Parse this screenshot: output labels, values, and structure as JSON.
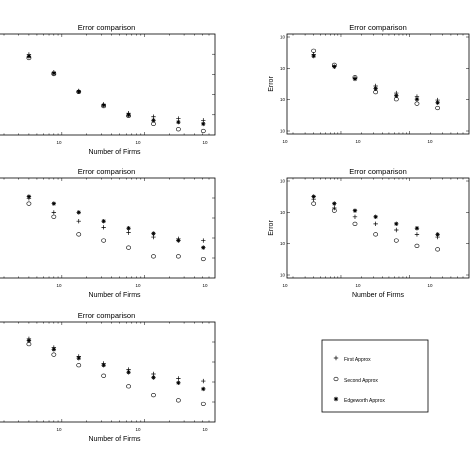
{
  "chart_data": [
    {
      "type": "scatter",
      "title": "Error comparison",
      "xlabel": "Number of Firms",
      "ylabel": "",
      "x_tick_labels": [
        "10",
        "10",
        "10"
      ],
      "y_tick_labels": [],
      "x": [
        4,
        8,
        16,
        32,
        64,
        128,
        256,
        512
      ],
      "series": [
        {
          "marker": "plus",
          "values": [
            0.86,
            0.66,
            0.45,
            0.3,
            0.2,
            0.16,
            0.14,
            0.12
          ]
        },
        {
          "marker": "circle",
          "values": [
            0.82,
            0.64,
            0.44,
            0.28,
            0.17,
            0.08,
            0.02,
            0.0
          ]
        },
        {
          "marker": "star",
          "values": [
            0.84,
            0.65,
            0.44,
            0.29,
            0.18,
            0.12,
            0.1,
            0.08
          ]
        }
      ]
    },
    {
      "type": "scatter",
      "title": "Error comparison",
      "xlabel": "",
      "ylabel": "Error",
      "x_tick_labels": [
        "10",
        "10",
        "10"
      ],
      "y_tick_labels": [
        "10",
        "10",
        "10",
        "10"
      ],
      "x": [
        4,
        8,
        16,
        32,
        64,
        128,
        256
      ],
      "series": [
        {
          "marker": "plus",
          "values": [
            0.86,
            0.72,
            0.59,
            0.5,
            0.42,
            0.38,
            0.34
          ]
        },
        {
          "marker": "circle",
          "values": [
            0.9,
            0.74,
            0.6,
            0.43,
            0.35,
            0.3,
            0.25
          ]
        },
        {
          "marker": "star",
          "values": [
            0.84,
            0.72,
            0.58,
            0.47,
            0.39,
            0.35,
            0.31
          ]
        }
      ]
    },
    {
      "type": "scatter",
      "title": "Error comparison",
      "xlabel": "Number of Firms",
      "ylabel": "",
      "x_tick_labels": [
        "10",
        "10",
        "10"
      ],
      "y_tick_labels": [],
      "x": [
        4,
        8,
        16,
        32,
        64,
        128,
        256,
        512
      ],
      "series": [
        {
          "marker": "plus",
          "values": [
            0.86,
            0.7,
            0.6,
            0.53,
            0.47,
            0.42,
            0.4,
            0.38
          ]
        },
        {
          "marker": "circle",
          "values": [
            0.8,
            0.65,
            0.45,
            0.38,
            0.3,
            0.2,
            0.2,
            0.17
          ]
        },
        {
          "marker": "star",
          "values": [
            0.88,
            0.8,
            0.7,
            0.6,
            0.52,
            0.46,
            0.38,
            0.3
          ]
        }
      ]
    },
    {
      "type": "scatter",
      "title": "Error comparison",
      "xlabel": "Number of Firms",
      "ylabel": "Error",
      "x_tick_labels": [
        "10",
        "10",
        "10"
      ],
      "y_tick_labels": [
        "10",
        "10",
        "10",
        "10"
      ],
      "x": [
        4,
        8,
        16,
        32,
        64,
        128,
        256
      ],
      "series": [
        {
          "marker": "plus",
          "values": [
            0.85,
            0.75,
            0.65,
            0.57,
            0.5,
            0.45,
            0.42
          ]
        },
        {
          "marker": "circle",
          "values": [
            0.8,
            0.72,
            0.57,
            0.45,
            0.38,
            0.32,
            0.28
          ]
        },
        {
          "marker": "star",
          "values": [
            0.88,
            0.8,
            0.72,
            0.65,
            0.57,
            0.52,
            0.45
          ]
        }
      ]
    },
    {
      "type": "scatter",
      "title": "Error comparison",
      "xlabel": "Number of Firms",
      "ylabel": "",
      "x_tick_labels": [
        "10",
        "10",
        "10"
      ],
      "y_tick_labels": [],
      "x": [
        4,
        8,
        16,
        32,
        64,
        128,
        256,
        512
      ],
      "series": [
        {
          "marker": "plus",
          "values": [
            0.9,
            0.8,
            0.7,
            0.62,
            0.55,
            0.5,
            0.45,
            0.42
          ]
        },
        {
          "marker": "circle",
          "values": [
            0.84,
            0.72,
            0.6,
            0.48,
            0.36,
            0.26,
            0.2,
            0.16
          ]
        },
        {
          "marker": "star",
          "values": [
            0.88,
            0.78,
            0.68,
            0.6,
            0.52,
            0.46,
            0.4,
            0.33
          ]
        }
      ]
    }
  ],
  "legend": {
    "entries": [
      {
        "marker": "plus",
        "label": "First Approx"
      },
      {
        "marker": "circle",
        "label": "Second Approx"
      },
      {
        "marker": "star",
        "label": "Edgeworth Approx"
      }
    ]
  }
}
